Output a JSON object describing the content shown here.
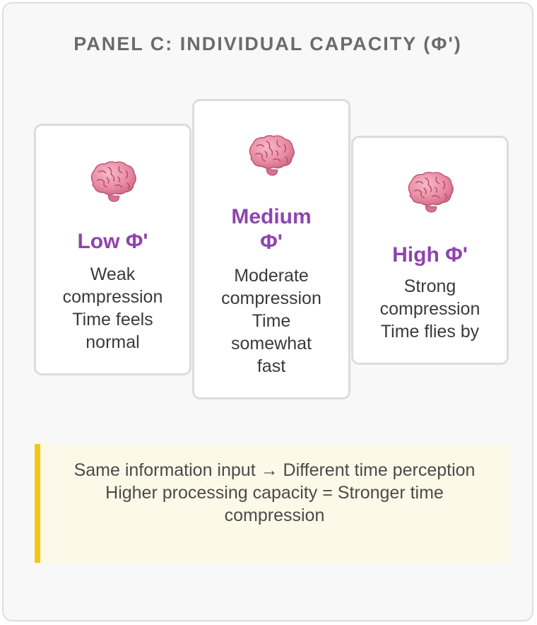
{
  "panel": {
    "title": "PANEL C: INDIVIDUAL CAPACITY (Φ')"
  },
  "cards": [
    {
      "icon": "brain-icon",
      "title": "Low Φ'",
      "lines": [
        "Weak",
        "compression",
        "Time feels",
        "normal"
      ]
    },
    {
      "icon": "brain-icon",
      "title_lines": [
        "Medium",
        "Φ'"
      ],
      "lines": [
        "Moderate",
        "compression",
        "Time",
        "somewhat",
        "fast"
      ]
    },
    {
      "icon": "brain-icon",
      "title": "High Φ'",
      "lines": [
        "Strong",
        "compression",
        "Time flies by"
      ]
    }
  ],
  "note": {
    "line1": "Same information input → Different time perception",
    "line2": "Higher processing capacity = Stronger time compression"
  },
  "colors": {
    "accent_purple": "#8e44ad",
    "note_border": "#f5c518",
    "note_background": "#fdf9e8",
    "brain_pink": "#e98aa3"
  }
}
